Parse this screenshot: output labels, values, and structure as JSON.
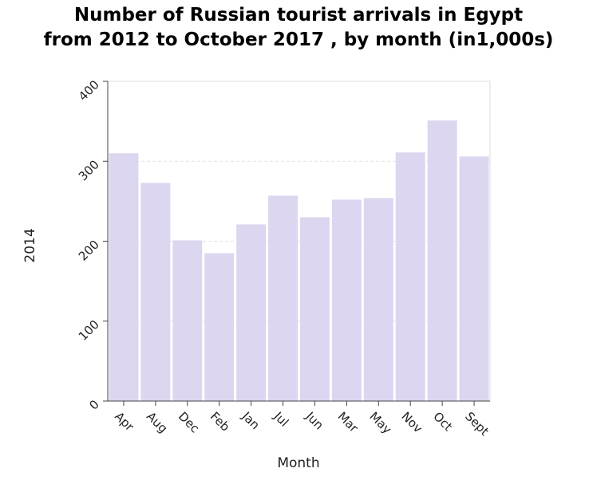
{
  "chart_data": {
    "type": "bar",
    "title_line1": "Number of Russian tourist arrivals in Egypt",
    "title_line2": "from 2012 to October 2017 , by month (in1,000s)",
    "xlabel": "Month",
    "ylabel": "2014",
    "categories": [
      "Apr",
      "Aug",
      "Dec",
      "Feb",
      "Jan",
      "Jul",
      "Jun",
      "Mar",
      "May",
      "Nov",
      "Oct",
      "Sept"
    ],
    "values": [
      310,
      273,
      201,
      185,
      221,
      257,
      230,
      252,
      254,
      311,
      351,
      306
    ],
    "ylim": [
      0,
      400
    ],
    "yticks": [
      0,
      100,
      200,
      300,
      400
    ],
    "grid": true,
    "bar_color": "#dcd6f0"
  }
}
